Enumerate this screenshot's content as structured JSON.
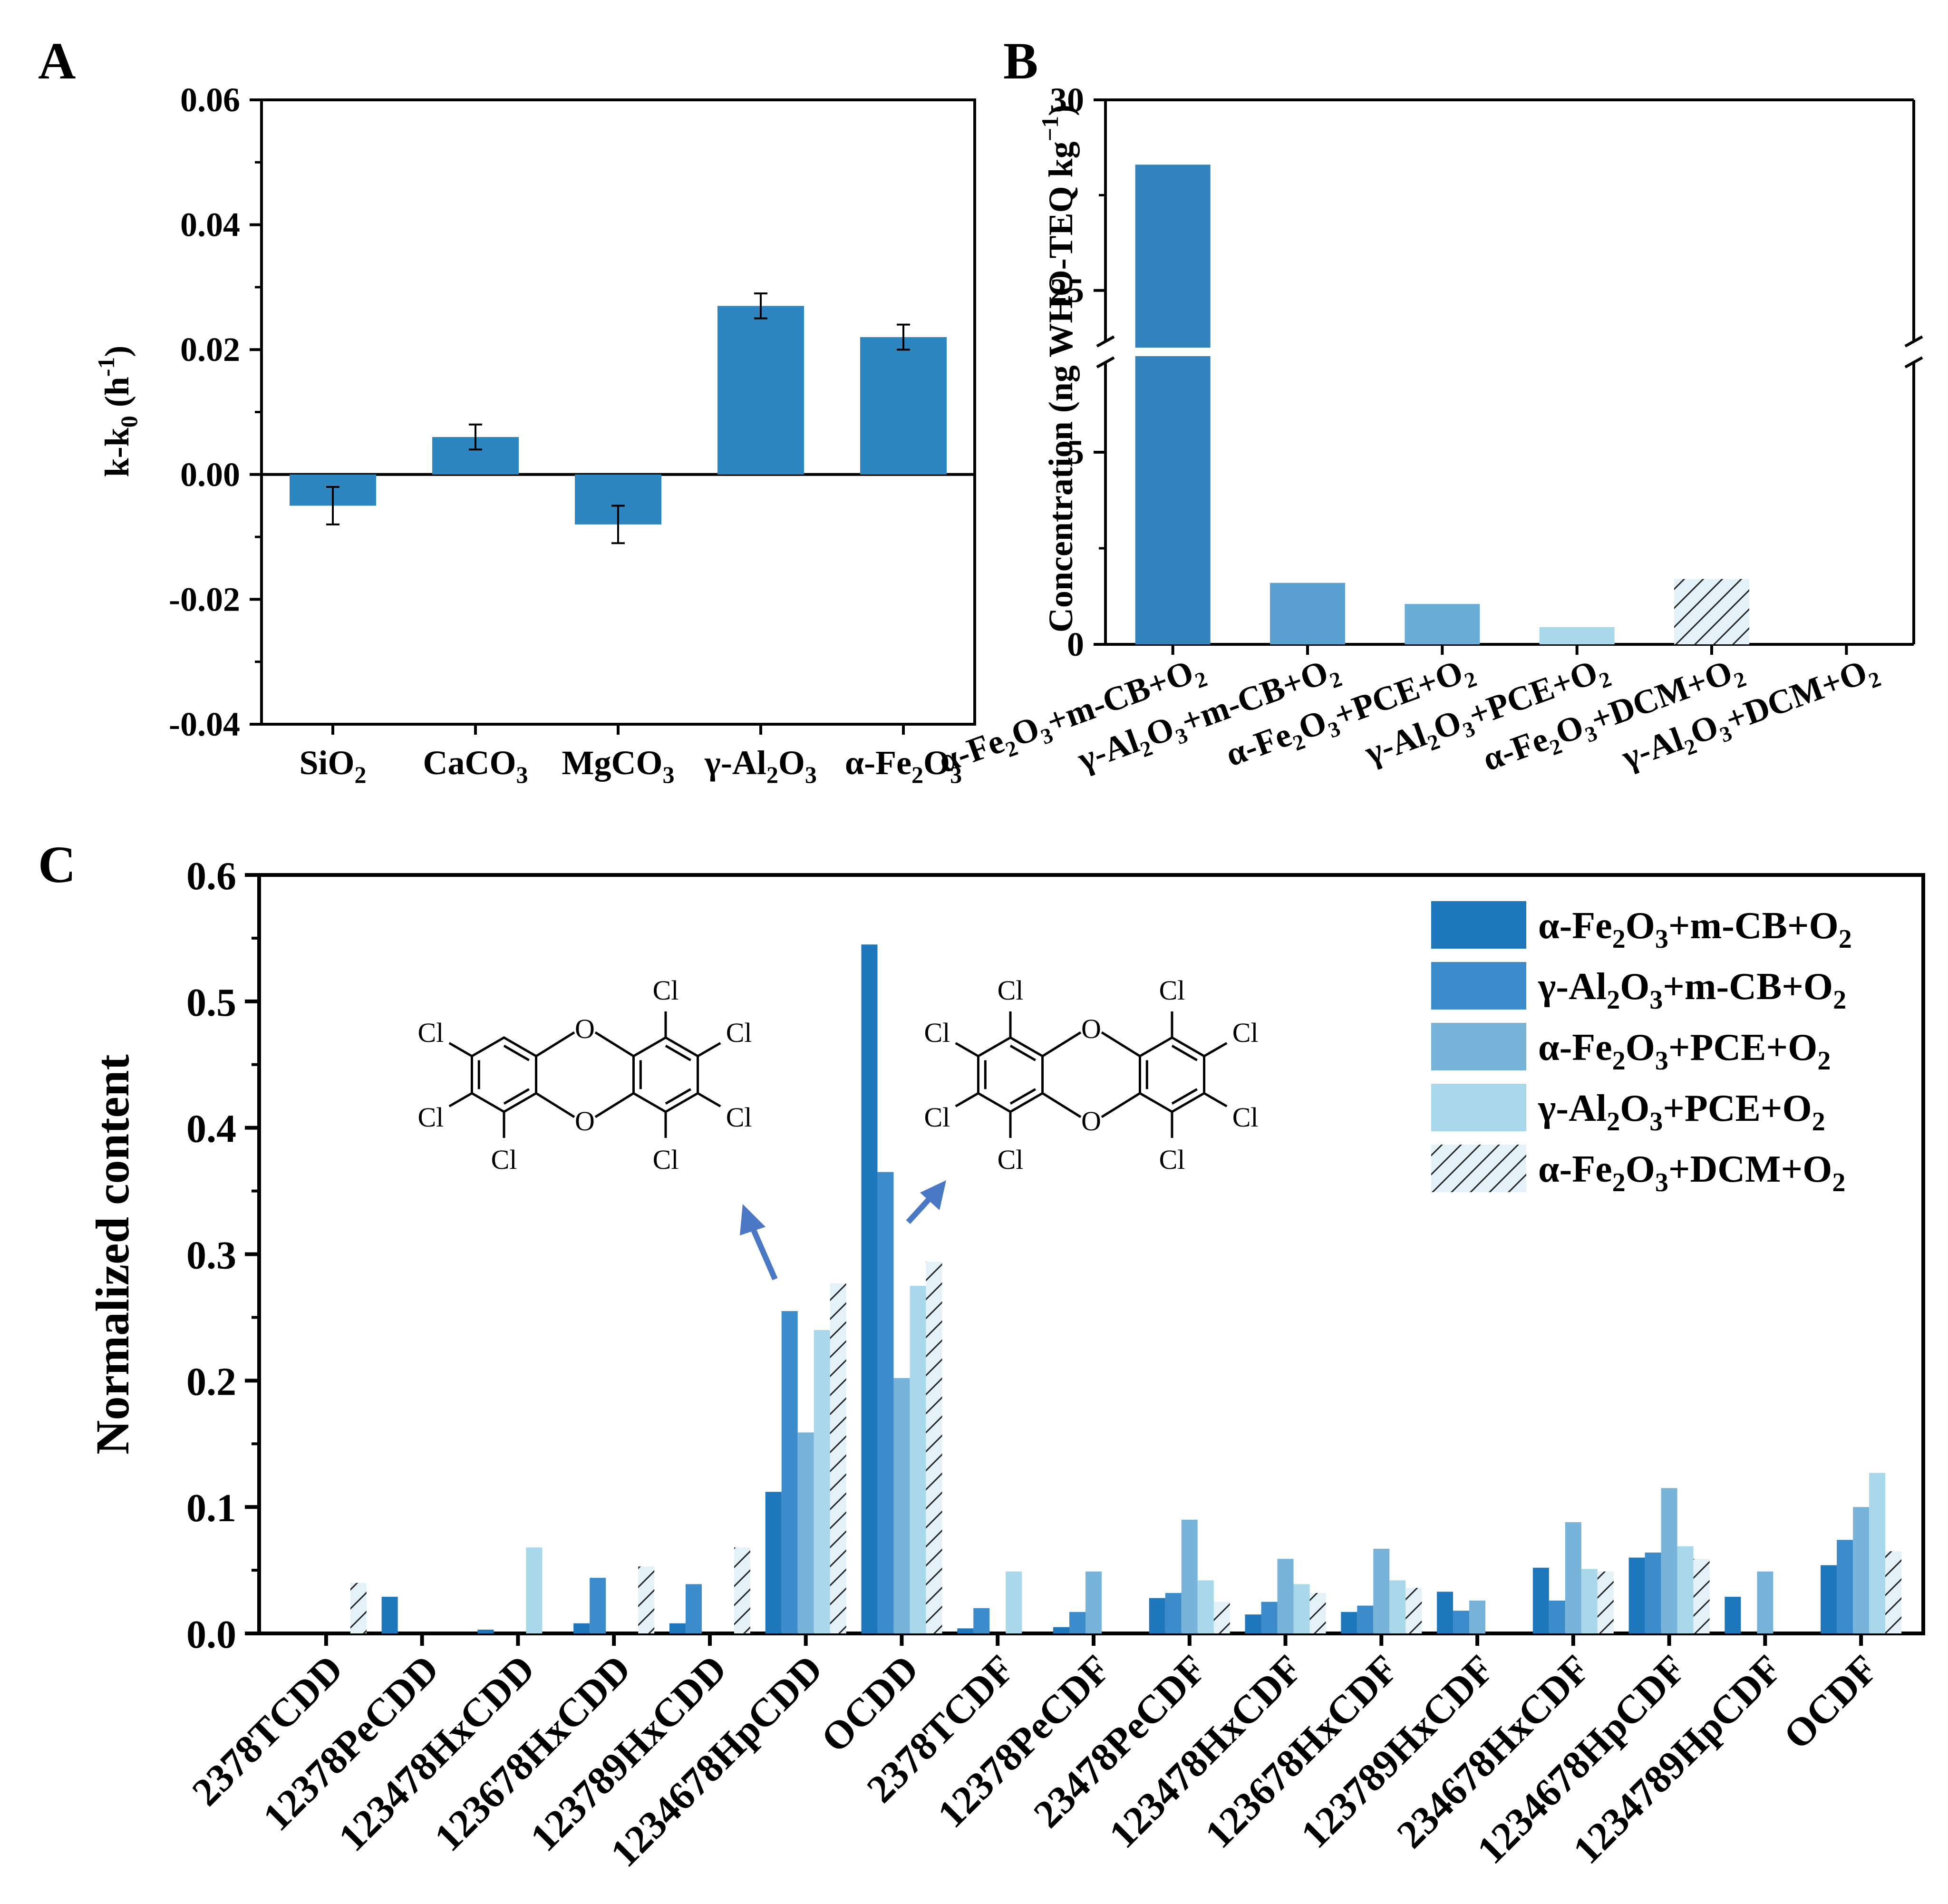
{
  "colors": {
    "c1": "#1f77bb",
    "c2": "#3c8ccc",
    "c3": "#78b4d9",
    "c4": "#a8d8ea",
    "c5_fill": "#e4f1f8",
    "c5_hatch": "#222222",
    "arrow": "#4a78c4",
    "bar_a": "#2e86c1"
  },
  "chart_data": [
    {
      "panel": "A",
      "type": "bar",
      "categories": [
        "SiO2",
        "CaCO3",
        "MgCO3",
        "γ-Al2O3",
        "α-Fe2O3"
      ],
      "category_labels": [
        {
          "main": "SiO",
          "sub": "2",
          "rest": ""
        },
        {
          "main": "CaCO",
          "sub": "3",
          "rest": ""
        },
        {
          "main": "MgCO",
          "sub": "3",
          "rest": ""
        },
        {
          "main": "γ-Al",
          "sub": "2",
          "rest": "O",
          "sub2": "3"
        },
        {
          "main": "α-Fe",
          "sub": "2",
          "rest": "O",
          "sub2": "3"
        }
      ],
      "values": [
        -0.005,
        0.006,
        -0.008,
        0.027,
        0.022
      ],
      "errors": [
        0.003,
        0.002,
        0.003,
        0.002,
        0.002
      ],
      "ylim": [
        -0.04,
        0.06
      ],
      "yticks": [
        "-0.04",
        "-0.02",
        "0.00",
        "0.02",
        "0.04",
        "0.06"
      ],
      "ytick_values": [
        -0.04,
        -0.02,
        0.0,
        0.02,
        0.04,
        0.06
      ],
      "ylabel": "k-k0 (h-1)"
    },
    {
      "panel": "B",
      "type": "bar",
      "categories": [
        "α-Fe2O3+m-CB+O2",
        "γ-Al2O3+m-CB+O2",
        "α-Fe2O3+PCE+O2",
        "γ-Al2O3+PCE+O2",
        "α-Fe2O3+DCM+O2",
        "γ-Al2O3+DCM+O2"
      ],
      "values": [
        28.3,
        1.6,
        1.05,
        0.45,
        1.7,
        0.0
      ],
      "hatched": [
        false,
        false,
        false,
        false,
        true,
        false
      ],
      "y_axis_break": [
        7.5,
        23.5
      ],
      "yticks_lower": [
        "0",
        "5"
      ],
      "yticks_upper": [
        "25",
        "30"
      ],
      "ylim": [
        0,
        30
      ],
      "ylabel": "Concentration (ng WHO-TEQ kg-1)"
    },
    {
      "panel": "C",
      "type": "bar",
      "categories": [
        "2378TCDD",
        "12378PeCDD",
        "123478HxCDD",
        "123678HxCDD",
        "123789HxCDD",
        "1234678HpCDD",
        "OCDD",
        "2378TCDF",
        "12378PeCDF",
        "23478PeCDF",
        "123478HxCDF",
        "123678HxCDF",
        "123789HxCDF",
        "234678HxCDF",
        "1234678HpCDF",
        "1234789HpCDF",
        "OCDF"
      ],
      "ylim": [
        0,
        0.6
      ],
      "yticks": [
        "0.0",
        "0.1",
        "0.2",
        "0.3",
        "0.4",
        "0.5",
        "0.6"
      ],
      "ylabel": "Normalized content",
      "legend_position": "top-right",
      "series": [
        {
          "name": "α-Fe2O3+m-CB+O2",
          "values": [
            0,
            0.029,
            0.003,
            0.008,
            0.008,
            0.112,
            0.545,
            0.004,
            0.005,
            0.028,
            0.015,
            0.017,
            0.033,
            0.052,
            0.06,
            0.029,
            0.054
          ]
        },
        {
          "name": "γ-Al2O3+m-CB+O2",
          "values": [
            0,
            0,
            0,
            0.044,
            0.039,
            0.255,
            0.365,
            0.02,
            0.017,
            0.032,
            0.025,
            0.022,
            0.018,
            0.026,
            0.064,
            0,
            0.074
          ]
        },
        {
          "name": "α-Fe2O3+PCE+O2",
          "values": [
            0,
            0,
            0,
            0,
            0,
            0.159,
            0.202,
            0,
            0.049,
            0.09,
            0.059,
            0.067,
            0.026,
            0.088,
            0.115,
            0.049,
            0.1
          ]
        },
        {
          "name": "γ-Al2O3+PCE+O2",
          "values": [
            0,
            0,
            0.068,
            0,
            0,
            0.24,
            0.275,
            0.049,
            0,
            0.042,
            0.039,
            0.042,
            0,
            0.051,
            0.069,
            0,
            0.127
          ]
        },
        {
          "name": "α-Fe2O3+DCM+O2",
          "values": [
            0.04,
            0,
            0,
            0.053,
            0.068,
            0.277,
            0.294,
            0,
            0,
            0.025,
            0.032,
            0.036,
            0,
            0.049,
            0.059,
            0,
            0.065
          ]
        }
      ],
      "legend": [
        {
          "main": "α-Fe",
          "s1": "2",
          "m2": "O",
          "s2": "3",
          "m3": "+m-CB+O",
          "s3": "2"
        },
        {
          "main": "γ-Al",
          "s1": "2",
          "m2": "O",
          "s2": "3",
          "m3": "+m-CB+O",
          "s3": "2"
        },
        {
          "main": "α-Fe",
          "s1": "2",
          "m2": "O",
          "s2": "3",
          "m3": "+PCE+O",
          "s3": "2"
        },
        {
          "main": "γ-Al",
          "s1": "2",
          "m2": "O",
          "s2": "3",
          "m3": "+PCE+O",
          "s3": "2"
        },
        {
          "main": "α-Fe",
          "s1": "2",
          "m2": "O",
          "s2": "3",
          "m3": "+DCM+O",
          "s3": "2"
        }
      ]
    }
  ],
  "panels": {
    "a": "A",
    "b": "B",
    "c": "C"
  },
  "axis_labels": {
    "a_main": "k-k",
    "a_sub": "0",
    "a_rest": " (h",
    "a_sup": "-1",
    "a_end": ")",
    "b_main": "Concentration (ng WHO-TEQ kg",
    "b_sup": "−1",
    "b_end": ")",
    "c": "Normalized content"
  },
  "molecules": {
    "atom_cl": "Cl",
    "atom_o": "O"
  }
}
